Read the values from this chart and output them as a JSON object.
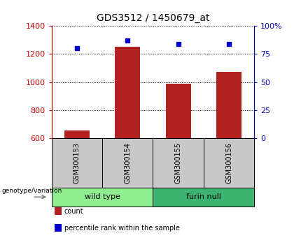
{
  "title": "GDS3512 / 1450679_at",
  "samples": [
    "GSM300153",
    "GSM300154",
    "GSM300155",
    "GSM300156"
  ],
  "counts": [
    657,
    1253,
    990,
    1075
  ],
  "percentiles": [
    80,
    87,
    84,
    84
  ],
  "ylim_left": [
    600,
    1400
  ],
  "ylim_right": [
    0,
    100
  ],
  "yticks_left": [
    600,
    800,
    1000,
    1200,
    1400
  ],
  "yticks_right": [
    0,
    25,
    50,
    75,
    100
  ],
  "bar_color": "#B22222",
  "dot_color": "#0000CD",
  "groups": [
    {
      "label": "wild type",
      "samples": [
        0,
        1
      ],
      "color": "#90EE90"
    },
    {
      "label": "furin null",
      "samples": [
        2,
        3
      ],
      "color": "#3CB371"
    }
  ],
  "genotype_label": "genotype/variation",
  "legend_items": [
    {
      "label": "count",
      "color": "#B22222"
    },
    {
      "label": "percentile rank within the sample",
      "color": "#0000CD"
    }
  ],
  "title_fontsize": 10,
  "tick_fontsize": 8,
  "bar_width": 0.5,
  "label_box_color": "#C8C8C8",
  "left_axis_color": "#CC0000",
  "right_axis_color": "#0000BB"
}
